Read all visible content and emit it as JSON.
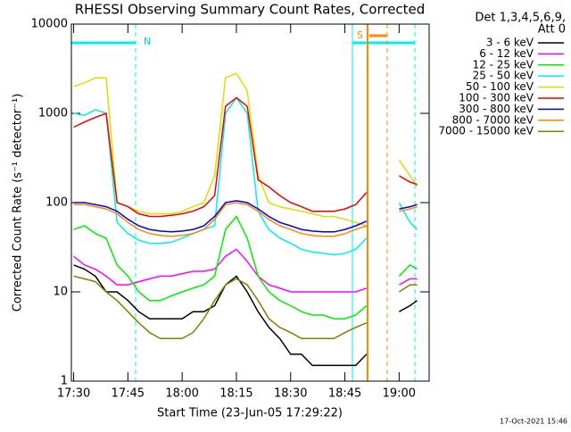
{
  "chart_data": {
    "type": "line",
    "title": "RHESSI Observing Summary Count Rates, Corrected",
    "xlabel": "Start Time (23-Jun-05 17:29:22)",
    "ylabel": "Corrected Count Rate (s⁻¹ detector⁻¹)",
    "legend_header": [
      "Det 1,3,4,5,6,9,",
      "Att 0"
    ],
    "footer": "17-Oct-2021 15:46",
    "annotations": [
      "N",
      "S"
    ],
    "log_y": true,
    "legend": "right",
    "xlim": [
      1049.37,
      1148.3
    ],
    "xticks": [
      {
        "value": 1050,
        "label": "17:30"
      },
      {
        "value": 1065,
        "label": "17:45"
      },
      {
        "value": 1080,
        "label": "18:00"
      },
      {
        "value": 1095,
        "label": "18:15"
      },
      {
        "value": 1110,
        "label": "18:30"
      },
      {
        "value": 1125,
        "label": "18:45"
      },
      {
        "value": 1140,
        "label": "19:00"
      }
    ],
    "ylim": [
      1,
      10000
    ],
    "yticks": [
      1,
      10,
      100,
      1000,
      10000
    ],
    "x": [
      1050,
      1053,
      1056,
      1059,
      1062,
      1065,
      1068,
      1071,
      1074,
      1077,
      1080,
      1083,
      1086,
      1089,
      1092,
      1095,
      1098,
      1101,
      1104,
      1107,
      1110,
      1113,
      1116,
      1119,
      1122,
      1125,
      1128,
      1131,
      1135,
      1140,
      1143,
      1145
    ],
    "series": [
      {
        "name": "3 - 6 keV",
        "color": "#000000",
        "values": [
          20,
          18,
          15,
          10,
          10,
          8,
          6,
          5,
          5,
          5,
          5,
          6,
          6,
          7,
          12,
          15,
          10,
          6,
          4,
          3,
          2,
          2,
          1.5,
          1.5,
          1.5,
          1.5,
          1.5,
          2,
          null,
          6,
          7,
          8
        ]
      },
      {
        "name": "6 - 12 keV",
        "color": "#ff00ff",
        "values": [
          25,
          20,
          18,
          15,
          12,
          12,
          13,
          14,
          15,
          15,
          16,
          17,
          17,
          18,
          25,
          30,
          22,
          15,
          12,
          11,
          10,
          10,
          10,
          10,
          10,
          10,
          10,
          11,
          null,
          12,
          14,
          14
        ]
      },
      {
        "name": "12 - 25 keV",
        "color": "#00ee00",
        "values": [
          50,
          55,
          45,
          40,
          20,
          15,
          10,
          8,
          8,
          9,
          10,
          11,
          12,
          15,
          50,
          70,
          40,
          15,
          10,
          8,
          7,
          6,
          5.5,
          5.5,
          5,
          5,
          5.5,
          7,
          null,
          15,
          20,
          18
        ]
      },
      {
        "name": "25 - 50 keV",
        "color": "#00eeee",
        "values": [
          1000,
          950,
          1100,
          1000,
          60,
          45,
          38,
          35,
          35,
          36,
          40,
          45,
          50,
          55,
          1000,
          1500,
          1000,
          80,
          50,
          40,
          35,
          30,
          28,
          27,
          26,
          27,
          30,
          40,
          null,
          100,
          60,
          50
        ]
      },
      {
        "name": "50 - 100 keV",
        "color": "#dddd00",
        "values": [
          2000,
          2200,
          2500,
          2500,
          100,
          90,
          80,
          75,
          75,
          75,
          80,
          90,
          100,
          200,
          2500,
          2800,
          1800,
          200,
          100,
          90,
          85,
          80,
          75,
          70,
          70,
          65,
          60,
          55,
          null,
          300,
          200,
          150
        ]
      },
      {
        "name": "100 - 300 keV",
        "color": "#ee0000",
        "values": [
          700,
          800,
          900,
          1000,
          100,
          90,
          75,
          70,
          70,
          72,
          75,
          80,
          90,
          120,
          1200,
          1500,
          1200,
          180,
          150,
          120,
          100,
          90,
          80,
          80,
          80,
          85,
          95,
          130,
          null,
          200,
          170,
          160
        ]
      },
      {
        "name": "300 - 800 keV",
        "color": "#0000dd",
        "values": [
          100,
          100,
          95,
          90,
          80,
          65,
          55,
          50,
          48,
          47,
          48,
          50,
          55,
          70,
          100,
          105,
          100,
          85,
          70,
          60,
          55,
          50,
          48,
          47,
          47,
          50,
          55,
          62,
          null,
          85,
          90,
          95
        ]
      },
      {
        "name": "800 - 7000 keV",
        "color": "#ff8800",
        "values": [
          95,
          95,
          90,
          85,
          75,
          60,
          50,
          45,
          43,
          42,
          43,
          45,
          50,
          65,
          95,
          100,
          95,
          80,
          65,
          55,
          50,
          45,
          43,
          42,
          42,
          45,
          50,
          55,
          null,
          80,
          85,
          90
        ]
      },
      {
        "name": "7000 - 15000 keV",
        "color": "#808000",
        "values": [
          15,
          14,
          13,
          10,
          8,
          6,
          4.5,
          3.5,
          3,
          3,
          3,
          3.5,
          5,
          8,
          12,
          14,
          12,
          8,
          5,
          4,
          3.5,
          3,
          3,
          3,
          3,
          3.5,
          4,
          4.5,
          null,
          10,
          12,
          12
        ]
      }
    ]
  }
}
